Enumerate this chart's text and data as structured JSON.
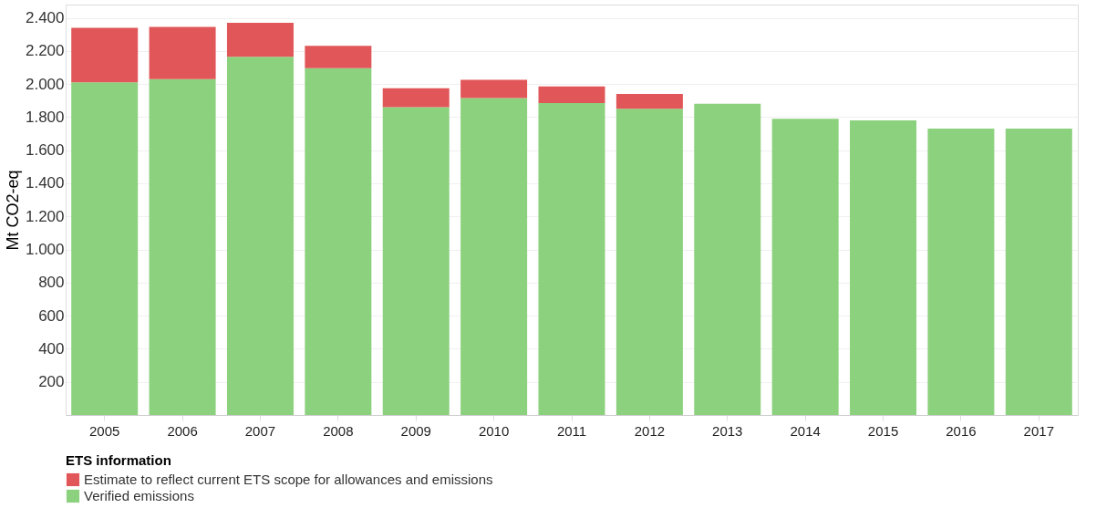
{
  "chart_data": {
    "type": "bar",
    "stacked": true,
    "ylabel": "Mt CO2-eq",
    "legend_title": "ETS information",
    "legend": "bottom left",
    "grid": "y",
    "categories": [
      "2005",
      "2006",
      "2007",
      "2008",
      "2009",
      "2010",
      "2011",
      "2012",
      "2013",
      "2014",
      "2015",
      "2016",
      "2017"
    ],
    "series": [
      {
        "name": "Verified emissions",
        "color": "#8cd17d",
        "values": [
          2010,
          2030,
          2165,
          2095,
          1860,
          1915,
          1885,
          1850,
          1880,
          1790,
          1780,
          1730,
          1730
        ]
      },
      {
        "name": "Estimate to reflect current ETS scope for allowances and emissions",
        "color": "#e15759",
        "values": [
          330,
          315,
          205,
          135,
          115,
          110,
          100,
          90,
          null,
          null,
          null,
          null,
          null
        ]
      }
    ],
    "ylim": [
      0,
      2480
    ],
    "yticks": [
      {
        "value": 200,
        "label": "200"
      },
      {
        "value": 400,
        "label": "400"
      },
      {
        "value": 600,
        "label": "600"
      },
      {
        "value": 800,
        "label": "800"
      },
      {
        "value": 1000,
        "label": "1.000"
      },
      {
        "value": 1200,
        "label": "1.200"
      },
      {
        "value": 1400,
        "label": "1.400"
      },
      {
        "value": 1600,
        "label": "1.600"
      },
      {
        "value": 1800,
        "label": "1.800"
      },
      {
        "value": 2000,
        "label": "2.000"
      },
      {
        "value": 2200,
        "label": "2.200"
      },
      {
        "value": 2400,
        "label": "2.400"
      }
    ]
  }
}
